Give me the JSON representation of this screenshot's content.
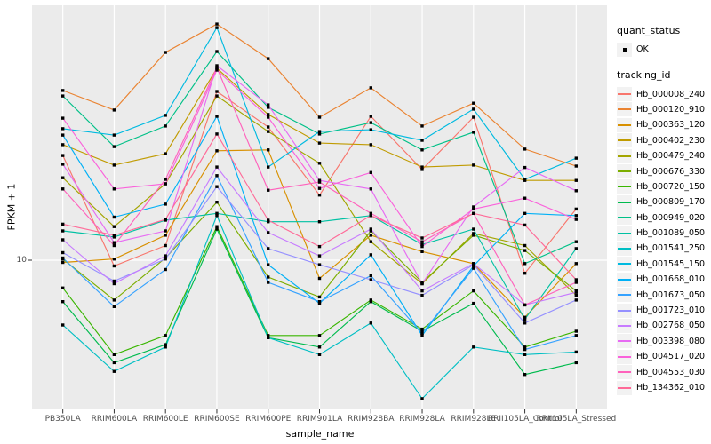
{
  "figure": {
    "x_axis_title": "sample_name",
    "y_axis_title": "FPKM + 1",
    "y_tick_label": "10",
    "legend_quant_title": "quant_status",
    "legend_quant_item": "OK",
    "legend_tracking_title": "tracking_id",
    "panel_bg": "#EBEBEB",
    "grid_color": "#FFFFFF",
    "tick_color": "#333333",
    "point_color": "#000000"
  },
  "chart_data": {
    "type": "line",
    "title": "",
    "xlabel": "sample_name",
    "ylabel": "FPKM + 1",
    "y_scale": "log10",
    "y_ticks": [
      10
    ],
    "legend_position": "right",
    "grid": true,
    "point_shape": "filled-square",
    "quant_status": "OK",
    "categories": [
      "PB350LA",
      "RRIM600LA",
      "RRIM600LE",
      "RRIM600SE",
      "RRIM600PE",
      "RRIM901LA",
      "RRIM928BA",
      "RRIM928LA",
      "RRIM928LE",
      "RRII105LA_Control",
      "RRII105LA_Stressed"
    ],
    "series": [
      {
        "name": "Hb_000008_240",
        "color": "#F8766D",
        "values": [
          25.5,
          9.5,
          11.4,
          45.2,
          32.9,
          17.9,
          36.2,
          22.5,
          35.9,
          8.9,
          15.8
        ]
      },
      {
        "name": "Hb_000120_910",
        "color": "#EA8331",
        "values": [
          45.6,
          38.3,
          64.1,
          82.6,
          60.6,
          35.9,
          46.7,
          33.2,
          40.7,
          27.0,
          23.2
        ]
      },
      {
        "name": "Hb_000363_120",
        "color": "#D89000",
        "values": [
          9.8,
          10.1,
          12.5,
          26.6,
          26.8,
          8.5,
          12.5,
          10.8,
          9.7,
          6.0,
          9.7
        ]
      },
      {
        "name": "Hb_000402_230",
        "color": "#C09B00",
        "values": [
          28.1,
          23.4,
          25.9,
          55.6,
          36.8,
          28.5,
          28.1,
          23.0,
          23.4,
          20.4,
          20.4
        ]
      },
      {
        "name": "Hb_000479_240",
        "color": "#A3A500",
        "values": [
          20.9,
          13.5,
          19.8,
          43.4,
          31.6,
          23.8,
          11.8,
          8.1,
          12.7,
          11.4,
          7.3
        ]
      },
      {
        "name": "Hb_000676_330",
        "color": "#7CAE00",
        "values": [
          10.1,
          7.0,
          10.2,
          16.8,
          8.6,
          7.2,
          13.0,
          8.2,
          12.5,
          10.9,
          7.6
        ]
      },
      {
        "name": "Hb_000720_150",
        "color": "#39B600",
        "values": [
          7.8,
          4.3,
          5.1,
          13.5,
          5.1,
          5.1,
          7.0,
          5.4,
          7.6,
          4.6,
          5.3
        ]
      },
      {
        "name": "Hb_000809_170",
        "color": "#00BB4E",
        "values": [
          6.9,
          4.0,
          4.7,
          13.2,
          5.0,
          4.6,
          6.9,
          5.3,
          6.8,
          3.6,
          4.0
        ]
      },
      {
        "name": "Hb_000949_020",
        "color": "#00C087",
        "values": [
          43.4,
          27.6,
          33.2,
          64.6,
          39.2,
          30.9,
          34.2,
          26.8,
          31.4,
          9.7,
          11.8
        ]
      },
      {
        "name": "Hb_001089_050",
        "color": "#00C1A3",
        "values": [
          13.0,
          12.3,
          14.3,
          15.2,
          14.1,
          14.1,
          14.9,
          11.5,
          13.2,
          5.9,
          11.1
        ]
      },
      {
        "name": "Hb_001541_250",
        "color": "#00BFC4",
        "values": [
          5.6,
          3.7,
          4.6,
          14.9,
          5.0,
          4.3,
          5.7,
          2.9,
          4.6,
          4.3,
          4.4
        ]
      },
      {
        "name": "Hb_001545_150",
        "color": "#00BAE0",
        "values": [
          32.4,
          30.6,
          36.5,
          80.0,
          23.0,
          31.6,
          32.1,
          29.2,
          38.6,
          20.6,
          24.9
        ]
      },
      {
        "name": "Hb_001668_010",
        "color": "#00B0F6",
        "values": [
          30.6,
          14.7,
          16.5,
          36.2,
          9.6,
          6.8,
          10.5,
          5.1,
          9.5,
          15.2,
          14.9
        ]
      },
      {
        "name": "Hb_001673_050",
        "color": "#35A2FF",
        "values": [
          10.2,
          6.6,
          9.2,
          21.3,
          8.2,
          6.9,
          8.7,
          5.2,
          9.3,
          4.5,
          5.1
        ]
      },
      {
        "name": "Hb_001723_010",
        "color": "#9590FF",
        "values": [
          10.7,
          8.3,
          10.1,
          19.3,
          11.1,
          9.6,
          8.4,
          7.3,
          9.6,
          5.7,
          7.0
        ]
      },
      {
        "name": "Hb_002768_050",
        "color": "#C77CFF",
        "values": [
          12.0,
          8.1,
          10.4,
          23.0,
          12.8,
          10.4,
          13.2,
          7.6,
          9.7,
          6.7,
          7.5
        ]
      },
      {
        "name": "Hb_003398_080",
        "color": "#E76BF3",
        "values": [
          23.6,
          11.7,
          13.0,
          56.9,
          40.1,
          20.4,
          18.9,
          8.1,
          16.1,
          22.9,
          18.6
        ]
      },
      {
        "name": "Hb_004517_020",
        "color": "#FA62DB",
        "values": [
          35.6,
          18.9,
          19.8,
          54.7,
          35.9,
          19.0,
          21.9,
          11.3,
          15.8,
          17.4,
          14.4
        ]
      },
      {
        "name": "Hb_004553_030",
        "color": "#FF62BC",
        "values": [
          18.9,
          11.4,
          20.6,
          56.0,
          18.7,
          20.1,
          15.2,
          11.8,
          15.2,
          6.7,
          8.2
        ]
      },
      {
        "name": "Hb_134362_010",
        "color": "#FF6A98",
        "values": [
          13.8,
          12.5,
          14.4,
          30.9,
          14.3,
          11.3,
          14.9,
          12.2,
          15.2,
          13.7,
          8.4
        ]
      }
    ]
  }
}
